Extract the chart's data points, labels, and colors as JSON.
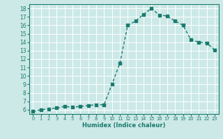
{
  "x": [
    0,
    1,
    2,
    3,
    4,
    5,
    6,
    7,
    8,
    9,
    10,
    11,
    12,
    13,
    14,
    15,
    16,
    17,
    18,
    19,
    20,
    21,
    22,
    23
  ],
  "y": [
    5.8,
    6.0,
    6.1,
    6.2,
    6.4,
    6.3,
    6.4,
    6.5,
    6.6,
    6.6,
    9.0,
    11.5,
    16.0,
    16.5,
    17.3,
    18.0,
    17.2,
    17.1,
    16.5,
    16.0,
    14.3,
    14.0,
    13.9,
    13.1
  ],
  "line_color": "#1a7a6e",
  "marker_color": "#1a7a6e",
  "bg_color": "#cce9e7",
  "grid_color": "#ffffff",
  "xlabel": "Humidex (Indice chaleur)",
  "xlim": [
    -0.5,
    23.5
  ],
  "ylim": [
    5.5,
    18.5
  ],
  "yticks": [
    6,
    7,
    8,
    9,
    10,
    11,
    12,
    13,
    14,
    15,
    16,
    17,
    18
  ],
  "xticks": [
    0,
    1,
    2,
    3,
    4,
    5,
    6,
    7,
    8,
    9,
    10,
    11,
    12,
    13,
    14,
    15,
    16,
    17,
    18,
    19,
    20,
    21,
    22,
    23
  ],
  "font_color": "#1a7a6e",
  "xlabel_fontsize": 6.0,
  "tick_fontsize_x": 4.8,
  "tick_fontsize_y": 5.5,
  "linewidth": 1.0,
  "markersize": 2.2
}
